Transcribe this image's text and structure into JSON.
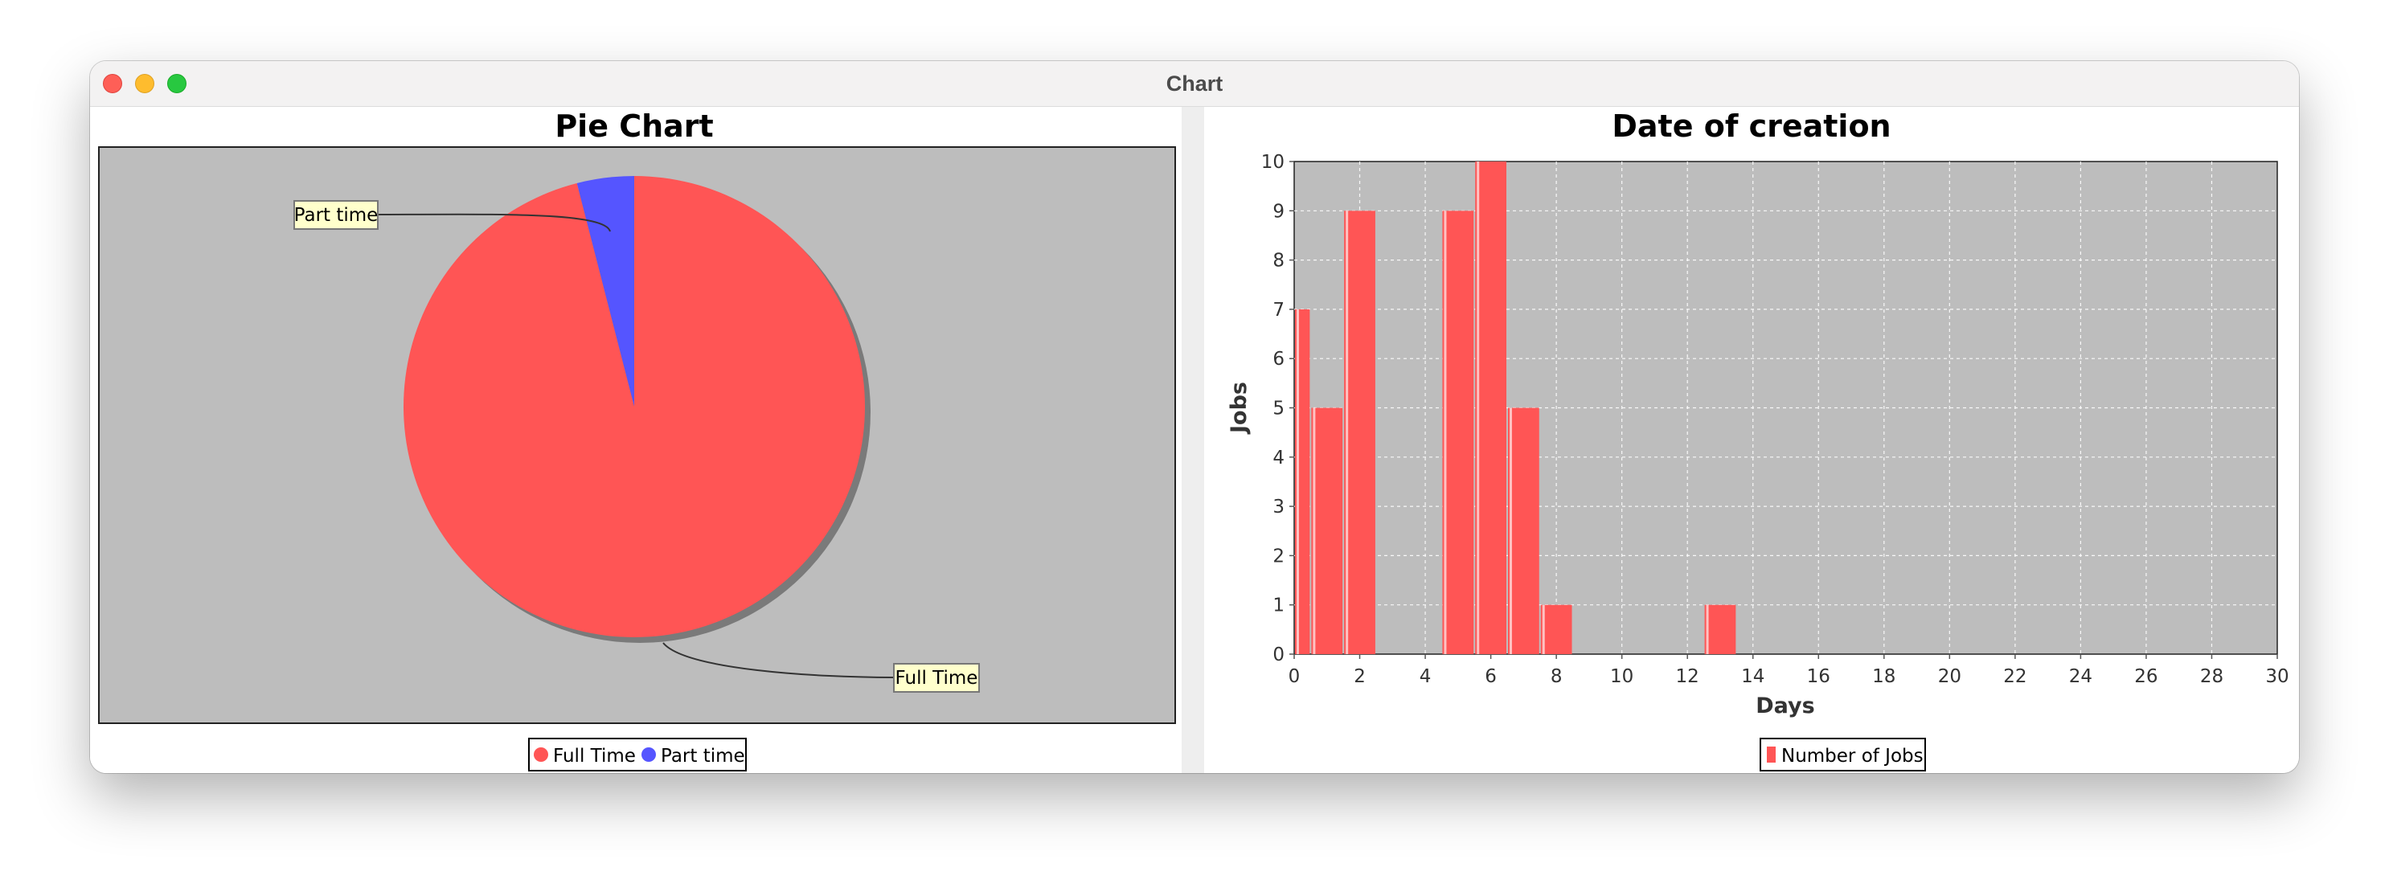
{
  "window": {
    "title": "Chart"
  },
  "chart_data": [
    {
      "type": "pie",
      "title": "Pie Chart",
      "slices": [
        {
          "label": "Full Time",
          "value": 96,
          "color": "#ff5555"
        },
        {
          "label": "Part time",
          "value": 4,
          "color": "#5555ff"
        }
      ],
      "legend": [
        "Full Time",
        "Part time"
      ],
      "legend_position": "bottom",
      "background": "#bdbdbd"
    },
    {
      "type": "bar",
      "title": "Date of creation",
      "xlabel": "Days",
      "ylabel": "Jobs",
      "xlim": [
        0,
        30
      ],
      "ylim": [
        0,
        10
      ],
      "xticks": [
        0,
        2,
        4,
        6,
        8,
        10,
        12,
        14,
        16,
        18,
        20,
        22,
        24,
        26,
        28,
        30
      ],
      "yticks": [
        0,
        1,
        2,
        3,
        4,
        5,
        6,
        7,
        8,
        9,
        10
      ],
      "grid": true,
      "series": [
        {
          "name": "Number of Jobs",
          "color": "#ff5555",
          "bars": [
            {
              "x0": 0.0,
              "x1": 0.5,
              "y": 7
            },
            {
              "x0": 0.5,
              "x1": 1.5,
              "y": 5
            },
            {
              "x0": 1.5,
              "x1": 2.5,
              "y": 9
            },
            {
              "x0": 4.5,
              "x1": 5.5,
              "y": 9
            },
            {
              "x0": 5.5,
              "x1": 6.5,
              "y": 10
            },
            {
              "x0": 6.5,
              "x1": 7.5,
              "y": 5
            },
            {
              "x0": 7.5,
              "x1": 8.5,
              "y": 1
            },
            {
              "x0": 12.5,
              "x1": 13.5,
              "y": 1
            }
          ]
        }
      ],
      "legend_position": "bottom",
      "background": "#bdbdbd"
    }
  ]
}
